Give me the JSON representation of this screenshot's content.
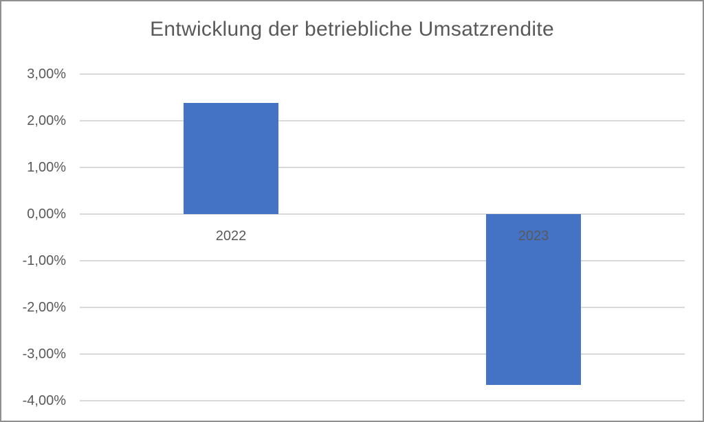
{
  "chart_data": {
    "type": "bar",
    "title": "Entwicklung der betriebliche Umsatzrendite",
    "categories": [
      "2022",
      "2023"
    ],
    "values": [
      2.38,
      -3.66
    ],
    "value_unit": "%",
    "xlabel": "",
    "ylabel": "",
    "ylim": [
      -4,
      3
    ],
    "y_tick_labels": [
      "3,00%",
      "2,00%",
      "1,00%",
      "0,00%",
      "-1,00%",
      "-2,00%",
      "-3,00%",
      "-4,00%"
    ],
    "y_tick_values": [
      3,
      2,
      1,
      0,
      -1,
      -2,
      -3,
      -4
    ],
    "grid": true,
    "legend": false,
    "colors": {
      "bar": "#4472C4",
      "text": "#595959",
      "gridline": "#D9D9D9",
      "chart_border": "#8F8F8F",
      "background": "#FFFFFF"
    }
  }
}
